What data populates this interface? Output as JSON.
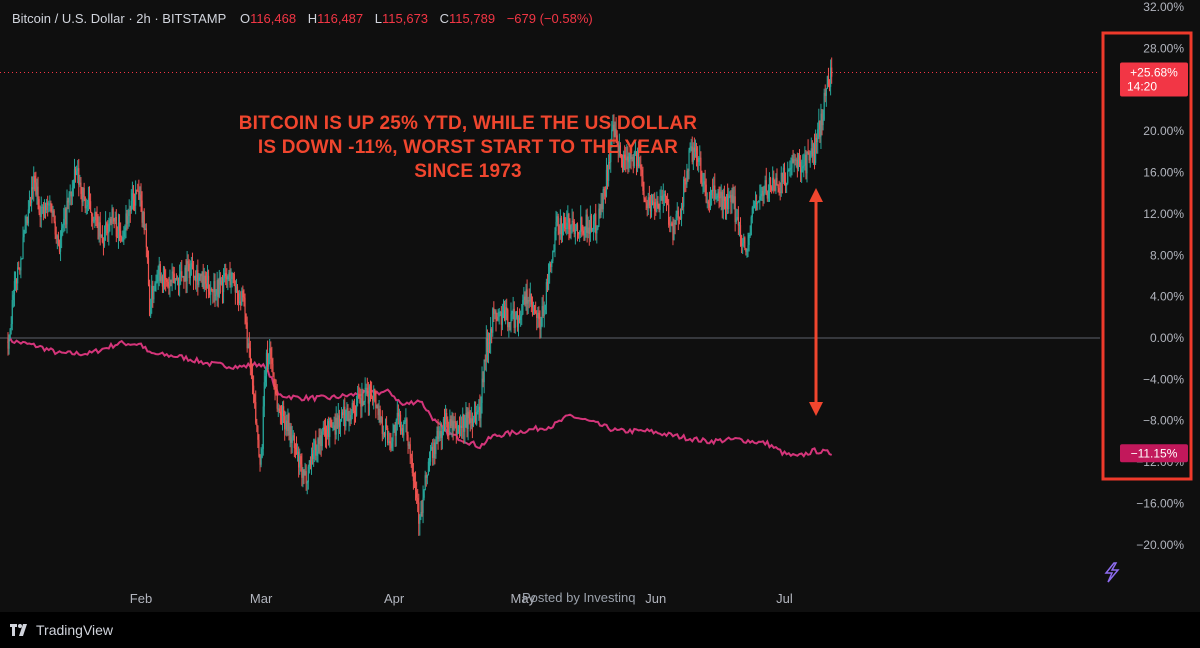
{
  "header": {
    "title": "Bitcoin / U.S. Dollar · 2h · BITSTAMP",
    "open_label": "O",
    "open": "116,468",
    "high_label": "H",
    "high": "116,487",
    "low_label": "L",
    "low": "115,673",
    "close_label": "C",
    "close": "115,789",
    "change": "−679 (−0.58%)"
  },
  "annotation": "BITCOIN IS UP 25% YTD, WHILE THE US DOLLAR IS DOWN -11%, WORST START TO THE YEAR SINCE 1973",
  "watermark": "Posted by Investinq",
  "brand": "TradingView",
  "colors": {
    "up": "#26a69a",
    "down": "#ef5350",
    "dxy": "#d4357a",
    "annotation": "#f0462e",
    "badge_btc": "#f23645",
    "badge_dxy": "#c2185b"
  },
  "badges": {
    "btc_value": "+25.68%",
    "btc_countdown": "14:20",
    "dxy_value": "−11.15%"
  },
  "chart_data": {
    "type": "line",
    "y_unit": "percent change YTD",
    "ylim": [
      -22,
      33
    ],
    "y_ticks": [
      32,
      28,
      20,
      16,
      12,
      8,
      4,
      0,
      -4,
      -8,
      -12,
      -16,
      -20
    ],
    "y_tick_labels": [
      "32.00%",
      "28.00%",
      "20.00%",
      "16.00%",
      "12.00%",
      "8.00%",
      "4.00%",
      "0.00%",
      "−4.00%",
      "−8.00%",
      "−12.00%",
      "−16.00%",
      "−20.00%"
    ],
    "x_labels": [
      {
        "label": "Feb",
        "date": "2025-02-01"
      },
      {
        "label": "Mar",
        "date": "2025-03-01"
      },
      {
        "label": "Apr",
        "date": "2025-04-01"
      },
      {
        "label": "May",
        "date": "2025-05-01"
      },
      {
        "label": "Jun",
        "date": "2025-06-01"
      },
      {
        "label": "Jul",
        "date": "2025-07-01"
      }
    ],
    "x_range": [
      "2025-01-01",
      "2025-07-14"
    ],
    "series": [
      {
        "name": "",
        "kind": "candles",
        "points": [
          [
            "2025-01-01",
            0
          ],
          [
            "2025-01-03",
            6
          ],
          [
            "2025-01-05",
            10
          ],
          [
            "2025-01-07",
            15
          ],
          [
            "2025-01-09",
            12
          ],
          [
            "2025-01-11",
            13
          ],
          [
            "2025-01-13",
            9
          ],
          [
            "2025-01-15",
            13
          ],
          [
            "2025-01-17",
            16
          ],
          [
            "2025-01-19",
            13
          ],
          [
            "2025-01-21",
            12
          ],
          [
            "2025-01-23",
            9
          ],
          [
            "2025-01-25",
            12
          ],
          [
            "2025-01-27",
            10
          ],
          [
            "2025-01-29",
            12
          ],
          [
            "2025-01-31",
            14
          ],
          [
            "2025-02-02",
            11
          ],
          [
            "2025-02-03",
            3
          ],
          [
            "2025-02-05",
            7
          ],
          [
            "2025-02-07",
            5
          ],
          [
            "2025-02-10",
            6
          ],
          [
            "2025-02-13",
            7
          ],
          [
            "2025-02-16",
            5
          ],
          [
            "2025-02-19",
            5
          ],
          [
            "2025-02-22",
            6
          ],
          [
            "2025-02-25",
            3
          ],
          [
            "2025-02-27",
            -5
          ],
          [
            "2025-02-28",
            -9
          ],
          [
            "2025-03-01",
            -12
          ],
          [
            "2025-03-02",
            -3
          ],
          [
            "2025-03-03",
            -1
          ],
          [
            "2025-03-05",
            -7
          ],
          [
            "2025-03-07",
            -8
          ],
          [
            "2025-03-09",
            -11
          ],
          [
            "2025-03-11",
            -14
          ],
          [
            "2025-03-13",
            -11
          ],
          [
            "2025-03-16",
            -9
          ],
          [
            "2025-03-19",
            -8
          ],
          [
            "2025-03-22",
            -7
          ],
          [
            "2025-03-25",
            -6
          ],
          [
            "2025-03-27",
            -5
          ],
          [
            "2025-03-29",
            -8
          ],
          [
            "2025-03-31",
            -10
          ],
          [
            "2025-04-02",
            -8
          ],
          [
            "2025-04-04",
            -9
          ],
          [
            "2025-04-06",
            -14
          ],
          [
            "2025-04-07",
            -18
          ],
          [
            "2025-04-09",
            -12
          ],
          [
            "2025-04-11",
            -10
          ],
          [
            "2025-04-13",
            -8
          ],
          [
            "2025-04-15",
            -9
          ],
          [
            "2025-04-18",
            -8
          ],
          [
            "2025-04-21",
            -7
          ],
          [
            "2025-04-22",
            -2
          ],
          [
            "2025-04-24",
            2
          ],
          [
            "2025-04-27",
            2
          ],
          [
            "2025-04-30",
            2
          ],
          [
            "2025-05-02",
            4
          ],
          [
            "2025-05-05",
            1
          ],
          [
            "2025-05-08",
            8
          ],
          [
            "2025-05-09",
            11
          ],
          [
            "2025-05-12",
            11
          ],
          [
            "2025-05-15",
            11
          ],
          [
            "2025-05-18",
            11
          ],
          [
            "2025-05-20",
            14
          ],
          [
            "2025-05-22",
            20
          ],
          [
            "2025-05-24",
            17
          ],
          [
            "2025-05-26",
            18
          ],
          [
            "2025-05-28",
            17
          ],
          [
            "2025-05-30",
            13
          ],
          [
            "2025-06-01",
            13
          ],
          [
            "2025-06-03",
            14
          ],
          [
            "2025-06-05",
            10
          ],
          [
            "2025-06-07",
            13
          ],
          [
            "2025-06-09",
            18
          ],
          [
            "2025-06-11",
            17
          ],
          [
            "2025-06-13",
            13
          ],
          [
            "2025-06-15",
            14
          ],
          [
            "2025-06-17",
            13
          ],
          [
            "2025-06-19",
            13
          ],
          [
            "2025-06-21",
            10
          ],
          [
            "2025-06-22",
            8
          ],
          [
            "2025-06-24",
            13
          ],
          [
            "2025-06-26",
            14
          ],
          [
            "2025-06-28",
            15
          ],
          [
            "2025-06-30",
            15
          ],
          [
            "2025-07-02",
            16
          ],
          [
            "2025-07-04",
            17
          ],
          [
            "2025-07-06",
            17
          ],
          [
            "2025-07-08",
            18
          ],
          [
            "2025-07-10",
            22
          ],
          [
            "2025-07-11",
            25
          ],
          [
            "2025-07-12",
            25.68
          ]
        ]
      },
      {
        "name": "",
        "kind": "line",
        "points": [
          [
            "2025-01-01",
            -0.2
          ],
          [
            "2025-01-08",
            -0.8
          ],
          [
            "2025-01-13",
            -1.5
          ],
          [
            "2025-01-20",
            -1.5
          ],
          [
            "2025-01-27",
            -0.5
          ],
          [
            "2025-02-01",
            -0.6
          ],
          [
            "2025-02-03",
            -1.5
          ],
          [
            "2025-02-10",
            -1.8
          ],
          [
            "2025-02-17",
            -2.5
          ],
          [
            "2025-02-24",
            -2.8
          ],
          [
            "2025-03-01",
            -2.5
          ],
          [
            "2025-03-03",
            -3.5
          ],
          [
            "2025-03-05",
            -5.5
          ],
          [
            "2025-03-10",
            -5.8
          ],
          [
            "2025-03-17",
            -5.8
          ],
          [
            "2025-03-24",
            -5.4
          ],
          [
            "2025-03-31",
            -5.2
          ],
          [
            "2025-04-03",
            -6.5
          ],
          [
            "2025-04-07",
            -6.0
          ],
          [
            "2025-04-11",
            -8.3
          ],
          [
            "2025-04-14",
            -9.3
          ],
          [
            "2025-04-21",
            -10.5
          ],
          [
            "2025-04-24",
            -9.5
          ],
          [
            "2025-05-01",
            -9.0
          ],
          [
            "2025-05-08",
            -8.5
          ],
          [
            "2025-05-12",
            -7.5
          ],
          [
            "2025-05-16",
            -8.0
          ],
          [
            "2025-05-23",
            -9.0
          ],
          [
            "2025-05-30",
            -9.0
          ],
          [
            "2025-06-06",
            -9.5
          ],
          [
            "2025-06-13",
            -10.0
          ],
          [
            "2025-06-20",
            -9.8
          ],
          [
            "2025-06-27",
            -10.2
          ],
          [
            "2025-07-01",
            -11.2
          ],
          [
            "2025-07-04",
            -11.5
          ],
          [
            "2025-07-08",
            -10.9
          ],
          [
            "2025-07-12",
            -11.15
          ]
        ]
      }
    ]
  }
}
